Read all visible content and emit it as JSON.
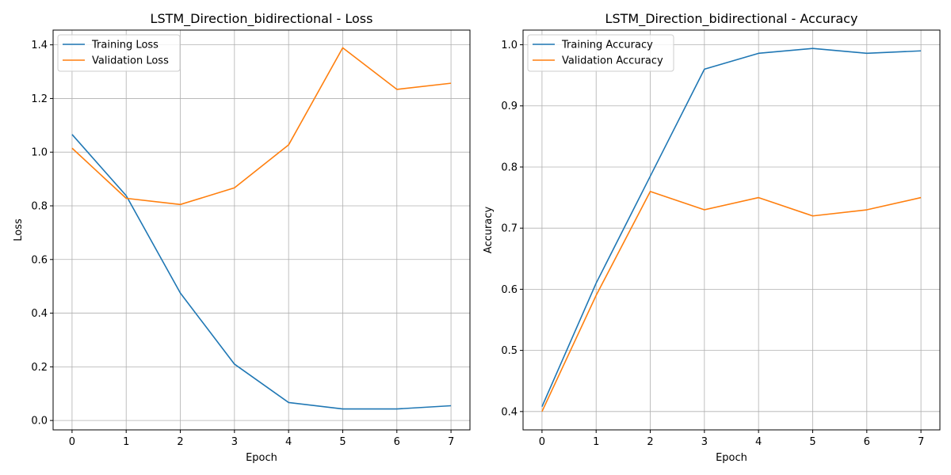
{
  "chart_data": [
    {
      "type": "line",
      "title": "LSTM_Direction_bidirectional - Loss",
      "xlabel": "Epoch",
      "ylabel": "Loss",
      "x": [
        0,
        1,
        2,
        3,
        4,
        5,
        6,
        7
      ],
      "xticks": [
        "0",
        "1",
        "2",
        "3",
        "4",
        "5",
        "6",
        "7"
      ],
      "yticks": [
        "0.0",
        "0.2",
        "0.4",
        "0.6",
        "0.8",
        "1.0",
        "1.2",
        "1.4"
      ],
      "ylim": [
        -0.035,
        1.455
      ],
      "xlim": [
        -0.35,
        7.35
      ],
      "grid": true,
      "legend_position": "top-left",
      "series": [
        {
          "name": "Training Loss",
          "color": "#1f77b4",
          "values": [
            1.066,
            0.838,
            0.475,
            0.21,
            0.067,
            0.043,
            0.043,
            0.055
          ]
        },
        {
          "name": "Validation Loss",
          "color": "#ff7f0e",
          "values": [
            1.015,
            0.828,
            0.805,
            0.867,
            1.027,
            1.389,
            1.234,
            1.257
          ]
        }
      ]
    },
    {
      "type": "line",
      "title": "LSTM_Direction_bidirectional - Accuracy",
      "xlabel": "Epoch",
      "ylabel": "Accuracy",
      "x": [
        0,
        1,
        2,
        3,
        4,
        5,
        6,
        7
      ],
      "xticks": [
        "0",
        "1",
        "2",
        "3",
        "4",
        "5",
        "6",
        "7"
      ],
      "yticks": [
        "0.4",
        "0.5",
        "0.6",
        "0.7",
        "0.8",
        "0.9",
        "1.0"
      ],
      "ylim": [
        0.37,
        1.024
      ],
      "xlim": [
        -0.35,
        7.35
      ],
      "grid": true,
      "legend_position": "top-left",
      "series": [
        {
          "name": "Training Accuracy",
          "color": "#1f77b4",
          "values": [
            0.408,
            0.61,
            0.785,
            0.96,
            0.986,
            0.994,
            0.986,
            0.99
          ]
        },
        {
          "name": "Validation Accuracy",
          "color": "#ff7f0e",
          "values": [
            0.4,
            0.59,
            0.76,
            0.73,
            0.75,
            0.72,
            0.73,
            0.75
          ]
        }
      ]
    }
  ]
}
